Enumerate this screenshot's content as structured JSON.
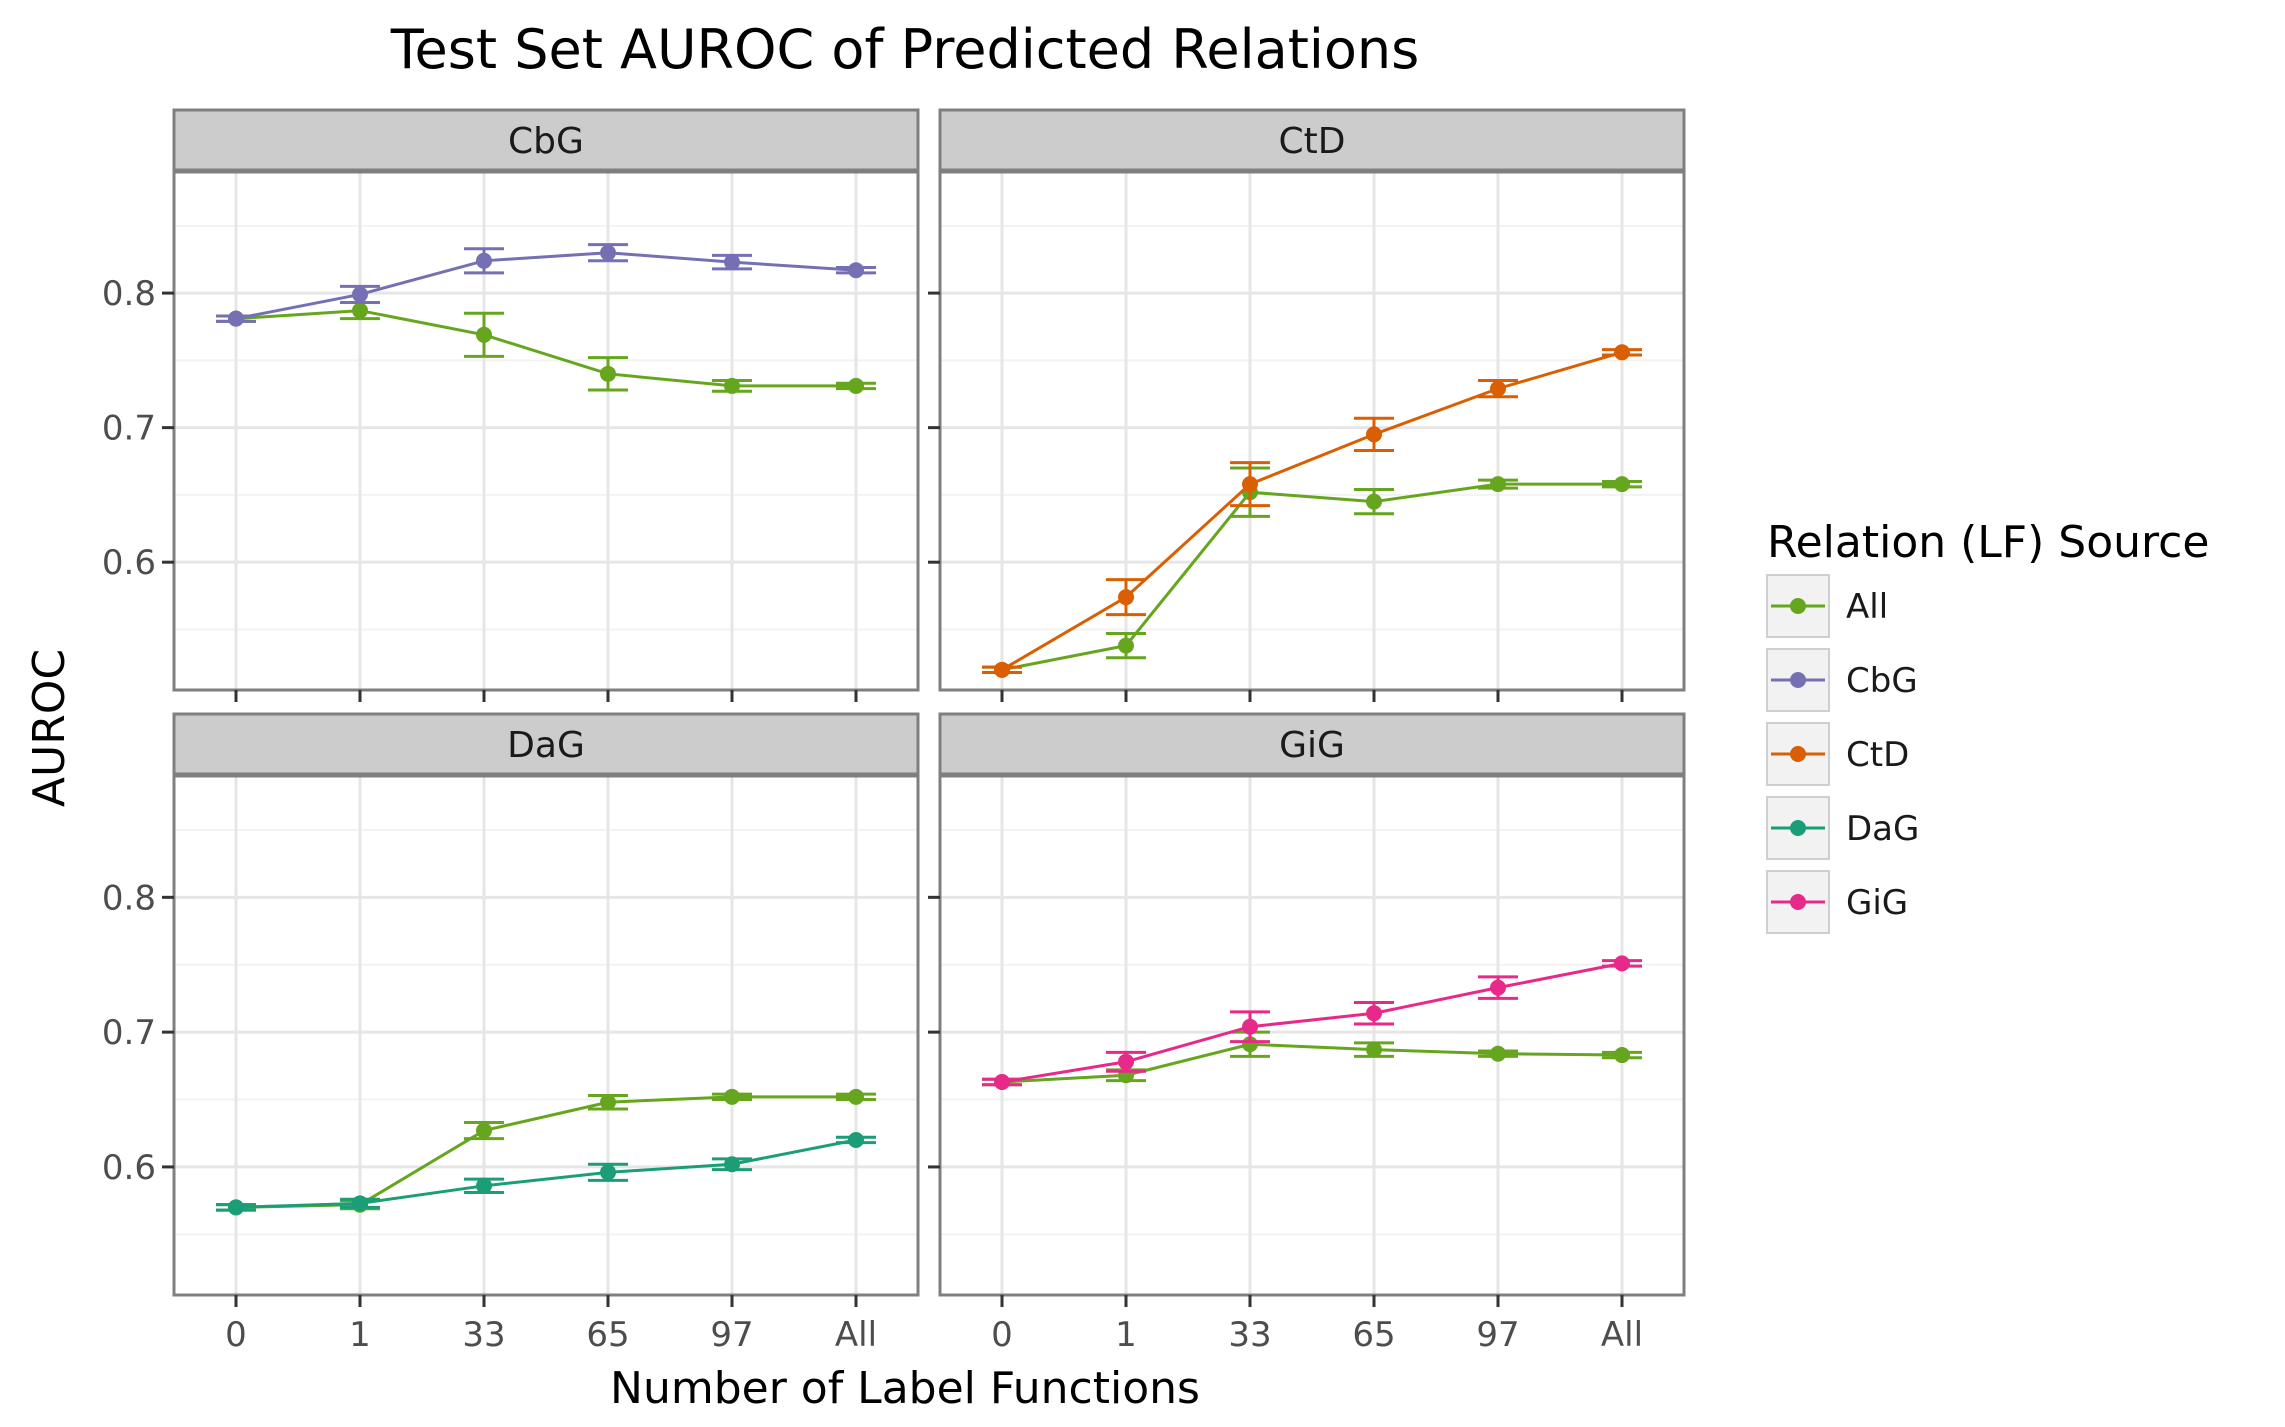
{
  "chart_data": {
    "type": "line",
    "title": "Test Set AUROC of Predicted Relations",
    "xlabel": "Number of Label Functions",
    "ylabel": "AUROC",
    "categories": [
      "0",
      "1",
      "33",
      "65",
      "97",
      "All"
    ],
    "ylim": [
      0.505,
      0.89
    ],
    "yticks": [
      0.6,
      0.7,
      0.8
    ],
    "ytick_labels": [
      "0.6",
      "0.7",
      "0.8"
    ],
    "grid": true,
    "legend": {
      "title": "Relation (LF) Source",
      "placement": "right",
      "entries": [
        "All",
        "CbG",
        "CtD",
        "DaG",
        "GiG"
      ]
    },
    "colors": {
      "All": "#66a61e",
      "CbG": "#7570b3",
      "CtD": "#d95f02",
      "DaG": "#1b9e77",
      "GiG": "#e7298a"
    },
    "panels": [
      {
        "name": "CbG",
        "series": [
          {
            "name": "All",
            "values": [
              0.781,
              0.787,
              0.769,
              0.74,
              0.731,
              0.731
            ],
            "err": [
              0.002,
              0.006,
              0.016,
              0.012,
              0.004,
              0.002
            ]
          },
          {
            "name": "CbG",
            "values": [
              0.781,
              0.799,
              0.824,
              0.83,
              0.823,
              0.817
            ],
            "err": [
              0.002,
              0.006,
              0.009,
              0.006,
              0.005,
              0.002
            ]
          }
        ]
      },
      {
        "name": "CtD",
        "series": [
          {
            "name": "All",
            "values": [
              0.52,
              0.538,
              0.652,
              0.645,
              0.658,
              0.658
            ],
            "err": [
              0.002,
              0.009,
              0.018,
              0.009,
              0.003,
              0.002
            ]
          },
          {
            "name": "CtD",
            "values": [
              0.52,
              0.574,
              0.658,
              0.695,
              0.729,
              0.756
            ],
            "err": [
              0.002,
              0.013,
              0.016,
              0.012,
              0.006,
              0.002
            ]
          }
        ]
      },
      {
        "name": "DaG",
        "series": [
          {
            "name": "All",
            "values": [
              0.57,
              0.572,
              0.627,
              0.648,
              0.652,
              0.652
            ],
            "err": [
              0.002,
              0.003,
              0.006,
              0.005,
              0.002,
              0.002
            ]
          },
          {
            "name": "DaG",
            "values": [
              0.57,
              0.573,
              0.586,
              0.596,
              0.602,
              0.62
            ],
            "err": [
              0.002,
              0.003,
              0.005,
              0.006,
              0.004,
              0.002
            ]
          }
        ]
      },
      {
        "name": "GiG",
        "series": [
          {
            "name": "All",
            "values": [
              0.663,
              0.668,
              0.691,
              0.687,
              0.684,
              0.683
            ],
            "err": [
              0.002,
              0.004,
              0.009,
              0.005,
              0.002,
              0.002
            ]
          },
          {
            "name": "GiG",
            "values": [
              0.663,
              0.678,
              0.704,
              0.714,
              0.733,
              0.751
            ],
            "err": [
              0.002,
              0.007,
              0.011,
              0.008,
              0.008,
              0.002
            ]
          }
        ]
      }
    ]
  }
}
